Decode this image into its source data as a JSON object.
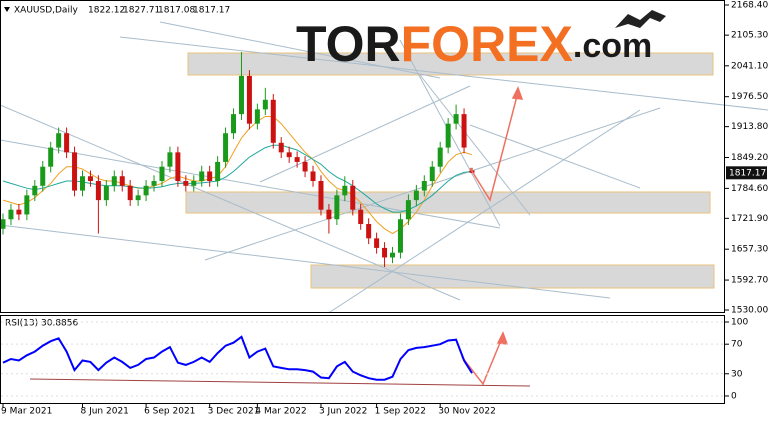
{
  "chart_data": {
    "type": "candlestick",
    "title": "XAUUSD,Daily",
    "categories": [
      "9 Mar 2021",
      null,
      null,
      null,
      null,
      null,
      null,
      null,
      null,
      null,
      "8 Jun 2021",
      null,
      null,
      null,
      null,
      null,
      null,
      null,
      "6 Sep 2021",
      null,
      null,
      null,
      null,
      null,
      null,
      null,
      "3 Dec 2021",
      null,
      null,
      null,
      null,
      null,
      "4 Mar 2022",
      null,
      null,
      null,
      null,
      null,
      null,
      null,
      "3 Jun 2022",
      null,
      null,
      null,
      null,
      null,
      null,
      "1 Sep 2022",
      null,
      null,
      null,
      null,
      null,
      null,
      null,
      "30 Nov 2022",
      null,
      null,
      null,
      null
    ],
    "open": [
      1700,
      1720,
      1740,
      1730,
      1770,
      1790,
      1830,
      1870,
      1900,
      1860,
      1780,
      1810,
      1800,
      1760,
      1790,
      1810,
      1790,
      1760,
      1770,
      1790,
      1800,
      1830,
      1860,
      1800,
      1790,
      1800,
      1820,
      1800,
      1840,
      1900,
      1940,
      2020,
      1920,
      1950,
      1970,
      1880,
      1860,
      1850,
      1840,
      1820,
      1800,
      1740,
      1720,
      1770,
      1790,
      1740,
      1710,
      1680,
      1660,
      1640,
      1650,
      1720,
      1760,
      1780,
      1800,
      1830,
      1870,
      1920,
      1940,
      1822.12
    ],
    "high": [
      1732,
      1752,
      1752,
      1782,
      1802,
      1842,
      1882,
      1912,
      1912,
      1872,
      1822,
      1822,
      1812,
      1802,
      1822,
      1822,
      1802,
      1782,
      1802,
      1812,
      1842,
      1872,
      1872,
      1812,
      1812,
      1832,
      1832,
      1852,
      1912,
      1952,
      2070,
      2032,
      1962,
      1995,
      1982,
      1892,
      1872,
      1862,
      1852,
      1832,
      1812,
      1752,
      1782,
      1810,
      1802,
      1752,
      1722,
      1692,
      1672,
      1662,
      1732,
      1772,
      1792,
      1812,
      1842,
      1882,
      1932,
      1960,
      1952,
      1827.71
    ],
    "low": [
      1688,
      1708,
      1718,
      1718,
      1758,
      1778,
      1818,
      1858,
      1848,
      1768,
      1768,
      1788,
      1690,
      1748,
      1778,
      1778,
      1748,
      1748,
      1758,
      1778,
      1788,
      1818,
      1788,
      1778,
      1778,
      1788,
      1788,
      1788,
      1828,
      1888,
      1928,
      1908,
      1908,
      1938,
      1868,
      1848,
      1838,
      1828,
      1808,
      1788,
      1728,
      1690,
      1708,
      1758,
      1728,
      1698,
      1668,
      1648,
      1620,
      1628,
      1638,
      1708,
      1748,
      1768,
      1788,
      1818,
      1858,
      1908,
      1858,
      1817.08
    ],
    "close": [
      1720,
      1740,
      1730,
      1770,
      1790,
      1830,
      1870,
      1900,
      1860,
      1780,
      1810,
      1800,
      1760,
      1790,
      1810,
      1790,
      1760,
      1770,
      1790,
      1800,
      1830,
      1860,
      1800,
      1790,
      1800,
      1820,
      1800,
      1840,
      1900,
      1940,
      2020,
      1920,
      1950,
      1970,
      1880,
      1860,
      1850,
      1840,
      1820,
      1800,
      1740,
      1720,
      1770,
      1790,
      1740,
      1710,
      1680,
      1660,
      1640,
      1650,
      1720,
      1760,
      1780,
      1800,
      1830,
      1870,
      1920,
      1940,
      1870,
      1817.17
    ],
    "up_color": "#1a9a1a",
    "down_color": "#cc1111",
    "moving_averages": [
      {
        "color": "#f0a020",
        "values": [
          1760,
          1755,
          1750,
          1755,
          1765,
          1780,
          1795,
          1815,
          1830,
          1830,
          1825,
          1815,
          1805,
          1800,
          1800,
          1795,
          1790,
          1785,
          1785,
          1790,
          1795,
          1805,
          1810,
          1805,
          1800,
          1800,
          1805,
          1810,
          1830,
          1860,
          1890,
          1910,
          1925,
          1935,
          1935,
          1920,
          1900,
          1880,
          1860,
          1845,
          1820,
          1800,
          1785,
          1780,
          1770,
          1755,
          1735,
          1715,
          1700,
          1690,
          1700,
          1715,
          1735,
          1760,
          1790,
          1815,
          1840,
          1855,
          1860,
          1855
        ]
      },
      {
        "color": "#20a89c",
        "values": [
          1800,
          1795,
          1790,
          1785,
          1782,
          1785,
          1790,
          1795,
          1800,
          1800,
          1798,
          1795,
          1792,
          1790,
          1790,
          1790,
          1788,
          1786,
          1785,
          1786,
          1788,
          1792,
          1795,
          1795,
          1795,
          1796,
          1798,
          1800,
          1808,
          1820,
          1835,
          1850,
          1860,
          1870,
          1875,
          1875,
          1870,
          1865,
          1855,
          1845,
          1835,
          1820,
          1808,
          1800,
          1790,
          1778,
          1765,
          1752,
          1742,
          1735,
          1735,
          1740,
          1748,
          1758,
          1770,
          1785,
          1800,
          1812,
          1818,
          1820
        ]
      }
    ],
    "ylim": [
      1525.85,
      2178.87
    ],
    "yticks": [
      {
        "value": 2168.4,
        "label": "2168.40"
      },
      {
        "value": 2105.3,
        "label": "2105.30"
      },
      {
        "value": 2041.1,
        "label": "2041.10"
      },
      {
        "value": 1976.5,
        "label": "1976.50"
      },
      {
        "value": 1913.8,
        "label": "1913.80"
      },
      {
        "value": 1849.2,
        "label": "1849.20"
      },
      {
        "value": 1784.6,
        "label": "1784.60"
      },
      {
        "value": 1721.9,
        "label": "1721.90"
      },
      {
        "value": 1657.3,
        "label": "1657.30"
      },
      {
        "value": 1592.7,
        "label": "1592.70"
      },
      {
        "value": 1530,
        "label": "1530.00"
      }
    ],
    "rsi": {
      "name": "RSI(13)",
      "color": "#0000ff",
      "values": [
        45,
        50,
        48,
        55,
        60,
        68,
        74,
        78,
        60,
        35,
        48,
        46,
        35,
        45,
        52,
        46,
        38,
        42,
        50,
        52,
        60,
        66,
        45,
        42,
        46,
        52,
        46,
        58,
        68,
        72,
        80,
        52,
        60,
        64,
        40,
        38,
        36,
        36,
        35,
        33,
        25,
        24,
        40,
        46,
        33,
        28,
        24,
        22,
        22,
        26,
        50,
        62,
        65,
        66,
        68,
        70,
        75,
        76,
        48,
        30.8856
      ],
      "ylim": [
        -12.2,
        108.1
      ],
      "yticks": [
        100,
        70,
        30,
        0
      ]
    },
    "watermark": [
      "TOR",
      "FOREX",
      ".com"
    ]
  }
}
